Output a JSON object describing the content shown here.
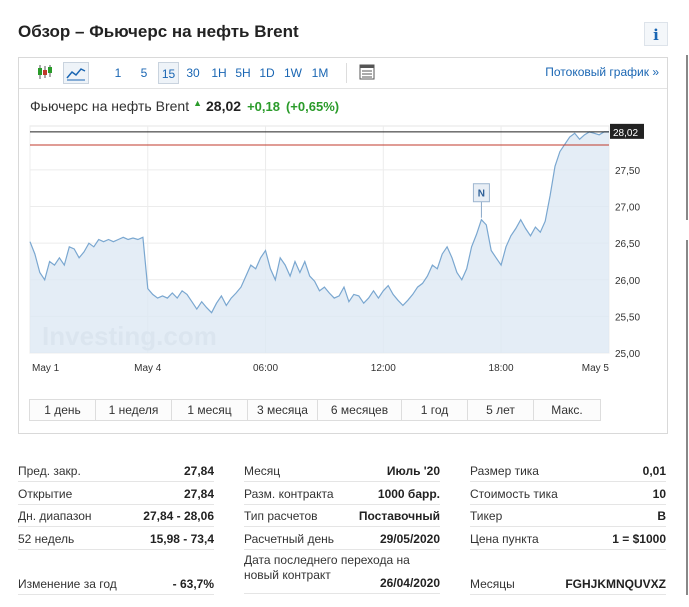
{
  "header": {
    "title": "Обзор – Фьючерс на нефть Brent",
    "info_label": "i"
  },
  "toolbar": {
    "timeframes": [
      "1",
      "5",
      "15",
      "30",
      "1H",
      "5H",
      "1D",
      "1W",
      "1M"
    ],
    "active_timeframe": "15",
    "stream_link": "Потоковый график »"
  },
  "quote": {
    "name": "Фьючерс на нефть Brent",
    "price": "28,02",
    "change": "+0,18",
    "change_pct": "(+0,65%)"
  },
  "chart_data": {
    "type": "area",
    "x_ticks": [
      "May 1",
      "May 4",
      "06:00",
      "12:00",
      "18:00",
      "May 5"
    ],
    "y_ticks": [
      "25,00",
      "25,50",
      "26,00",
      "26,50",
      "27,00",
      "27,50"
    ],
    "ylim": [
      25.0,
      28.1
    ],
    "current_value_label": "28,02",
    "current_value": 28.02,
    "reference_line_value": 27.84,
    "event_marker": "N",
    "watermark": "Investing.com",
    "grid": true,
    "colors": {
      "line": "#7aa7d0",
      "fill": "#dde9f4",
      "current_line": "#222222",
      "reference_line": "#c0392b"
    },
    "values": [
      26.52,
      26.35,
      26.1,
      26.0,
      26.25,
      26.2,
      26.3,
      26.2,
      26.45,
      26.42,
      26.3,
      26.38,
      26.5,
      26.45,
      26.55,
      26.52,
      26.55,
      26.52,
      26.55,
      26.58,
      26.55,
      26.57,
      26.55,
      26.58,
      25.88,
      25.8,
      25.75,
      25.78,
      25.75,
      25.82,
      25.75,
      25.85,
      25.8,
      25.7,
      25.6,
      25.7,
      25.62,
      25.55,
      25.68,
      25.78,
      25.65,
      25.75,
      25.82,
      25.9,
      26.05,
      26.2,
      26.15,
      26.3,
      26.4,
      26.15,
      26.0,
      26.3,
      26.2,
      26.05,
      26.25,
      26.1,
      26.25,
      26.05,
      25.98,
      25.85,
      25.9,
      25.82,
      25.75,
      25.78,
      25.9,
      25.7,
      25.8,
      25.78,
      25.68,
      25.75,
      25.85,
      25.75,
      25.85,
      25.92,
      25.8,
      25.72,
      25.65,
      25.72,
      25.8,
      25.9,
      25.95,
      26.05,
      26.2,
      26.15,
      26.35,
      26.45,
      26.3,
      26.1,
      26.0,
      26.15,
      26.45,
      26.62,
      26.82,
      26.75,
      26.4,
      26.3,
      26.2,
      26.45,
      26.6,
      26.7,
      26.82,
      26.7,
      26.6,
      26.72,
      26.65,
      26.8,
      27.15,
      27.55,
      27.75,
      27.85,
      27.95,
      28.0,
      27.92,
      27.98,
      28.02,
      28.0,
      27.98,
      28.02,
      28.02
    ]
  },
  "ranges": [
    "1 день",
    "1 неделя",
    "1 месяц",
    "3 месяца",
    "6 месяцев",
    "1 год",
    "5 лет",
    "Макс."
  ],
  "stats": {
    "col1": [
      {
        "label": "Пред. закр.",
        "value": "27,84"
      },
      {
        "label": "Открытие",
        "value": "27,84"
      },
      {
        "label": "Дн. диапазон",
        "value": "27,84 - 28,06"
      },
      {
        "label": "52 недель",
        "value": "15,98 - 73,4"
      },
      {
        "label": "",
        "value": ""
      },
      {
        "label": "Изменение за год",
        "value": "- 63,7%"
      }
    ],
    "col2": [
      {
        "label": "Месяц",
        "value": "Июль '20"
      },
      {
        "label": "Разм. контракта",
        "value": "1000 барр."
      },
      {
        "label": "Тип расчетов",
        "value": "Поставочный"
      },
      {
        "label": "Расчетный день",
        "value": "29/05/2020"
      },
      {
        "label": "Дата последнего перехода на новый контракт",
        "value": "26/04/2020"
      }
    ],
    "col3": [
      {
        "label": "Размер тика",
        "value": "0,01"
      },
      {
        "label": "Стоимость тика",
        "value": "10"
      },
      {
        "label": "Тикер",
        "value": "B"
      },
      {
        "label": "Цена пункта",
        "value": "1 = $1000"
      },
      {
        "label": "",
        "value": ""
      },
      {
        "label": "Месяцы",
        "value": "FGHJKMNQUVXZ"
      }
    ]
  }
}
